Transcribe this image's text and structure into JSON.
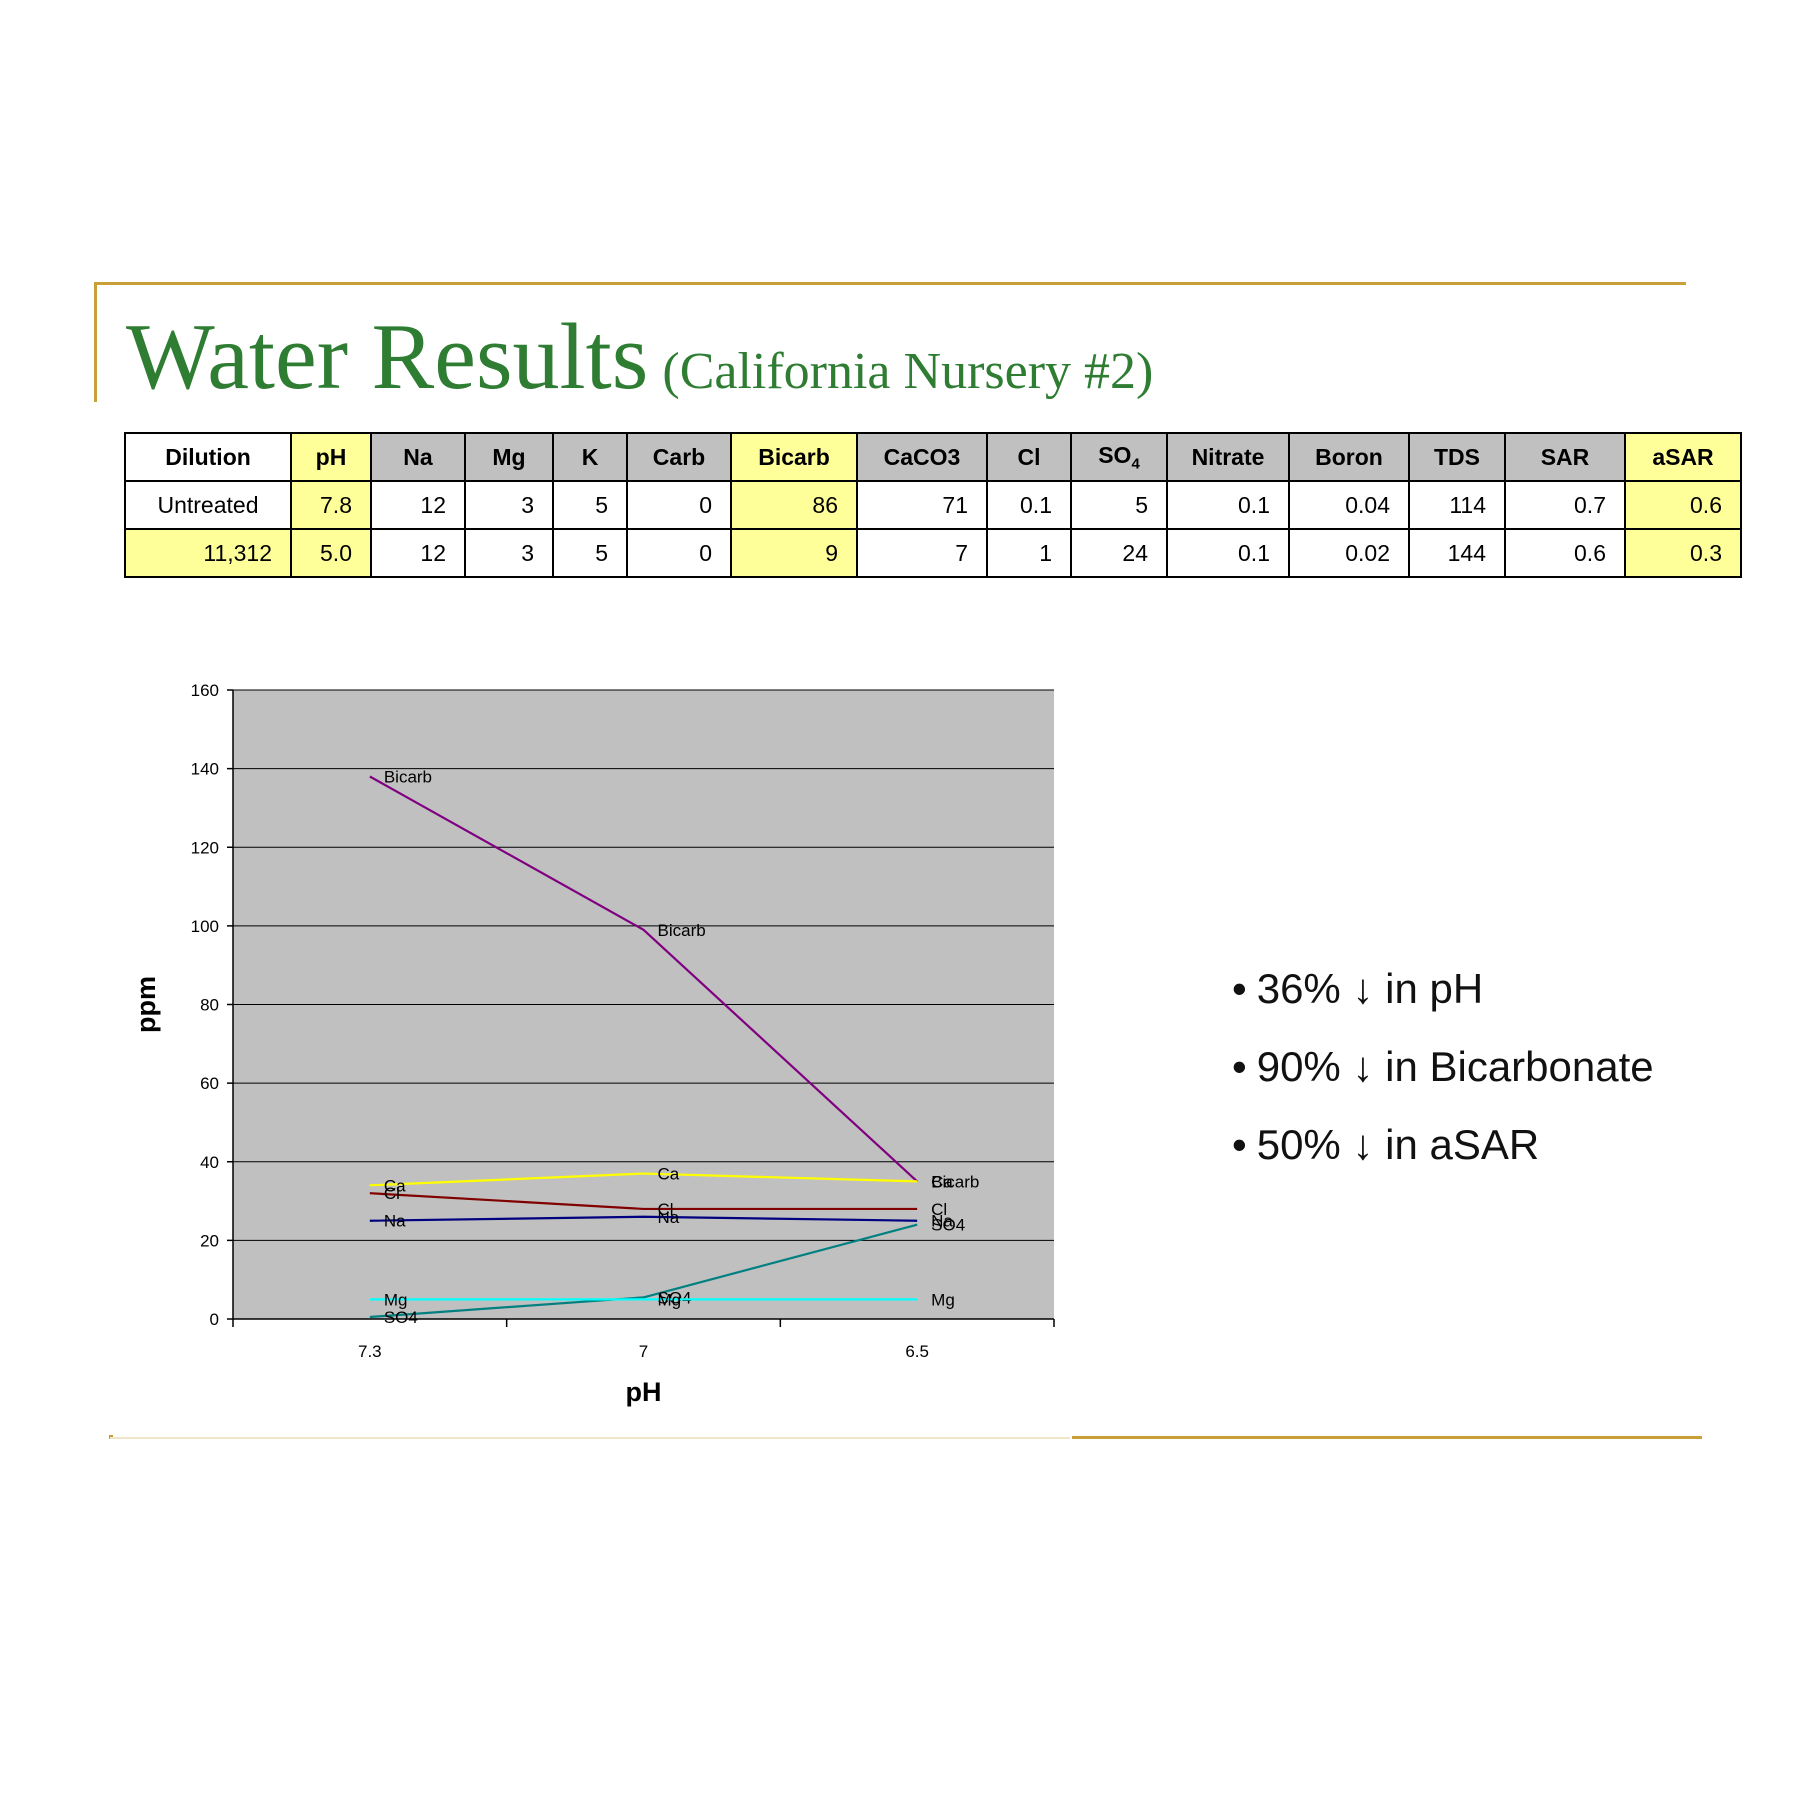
{
  "title": {
    "main": "Water Results",
    "sub": "(California Nursery #2)"
  },
  "table": {
    "headers": [
      {
        "label": "Dilution",
        "style": "white"
      },
      {
        "label": "pH",
        "style": "yellow"
      },
      {
        "label": "Na",
        "style": "gray"
      },
      {
        "label": "Mg",
        "style": "gray"
      },
      {
        "label": "K",
        "style": "gray"
      },
      {
        "label": "Carb",
        "style": "gray"
      },
      {
        "label": "Bicarb",
        "style": "yellow"
      },
      {
        "label": "CaCO3",
        "style": "gray"
      },
      {
        "label": "Cl",
        "style": "gray"
      },
      {
        "label": "SO",
        "sub": "4",
        "style": "gray"
      },
      {
        "label": "Nitrate",
        "style": "gray"
      },
      {
        "label": "Boron",
        "style": "gray"
      },
      {
        "label": "TDS",
        "style": "gray"
      },
      {
        "label": "SAR",
        "style": "gray"
      },
      {
        "label": "aSAR",
        "style": "yellow"
      }
    ],
    "rows": [
      [
        "Untreated",
        "7.8",
        "12",
        "3",
        "5",
        "0",
        "86",
        "71",
        "0.1",
        "5",
        "0.1",
        "0.04",
        "114",
        "0.7",
        "0.6"
      ],
      [
        "11,312",
        "5.0",
        "12",
        "3",
        "5",
        "0",
        "9",
        "7",
        "1",
        "24",
        "0.1",
        "0.02",
        "144",
        "0.6",
        "0.3"
      ]
    ]
  },
  "chart_data": {
    "type": "line",
    "x": [
      "7.3",
      "7",
      "6.5"
    ],
    "xlabel": "pH",
    "ylabel": "ppm",
    "ylim": [
      0,
      160
    ],
    "yticks": [
      "0",
      "20",
      "40",
      "60",
      "80",
      "100",
      "120",
      "140",
      "160"
    ],
    "grid": true,
    "background": "#c0c0c0",
    "series": [
      {
        "name": "Bicarb",
        "color": "#800080",
        "values": [
          138,
          99,
          35
        ]
      },
      {
        "name": "Ca",
        "color": "#ffff00",
        "values": [
          34,
          37,
          35
        ]
      },
      {
        "name": "Cl",
        "color": "#800000",
        "values": [
          32,
          28,
          28
        ]
      },
      {
        "name": "Na",
        "color": "#000080",
        "values": [
          25,
          26,
          25
        ]
      },
      {
        "name": "SO4",
        "color": "#008080",
        "values": [
          0.5,
          5.5,
          24
        ]
      },
      {
        "name": "Mg",
        "color": "#00ffff",
        "values": [
          5,
          5,
          5
        ]
      }
    ]
  },
  "bullets": [
    {
      "dot": "•",
      "text": "36% ↓ in pH"
    },
    {
      "dot": "•",
      "text": "90% ↓ in Bicarbonate"
    },
    {
      "dot": "•",
      "text": "50% ↓ in  aSAR"
    }
  ]
}
